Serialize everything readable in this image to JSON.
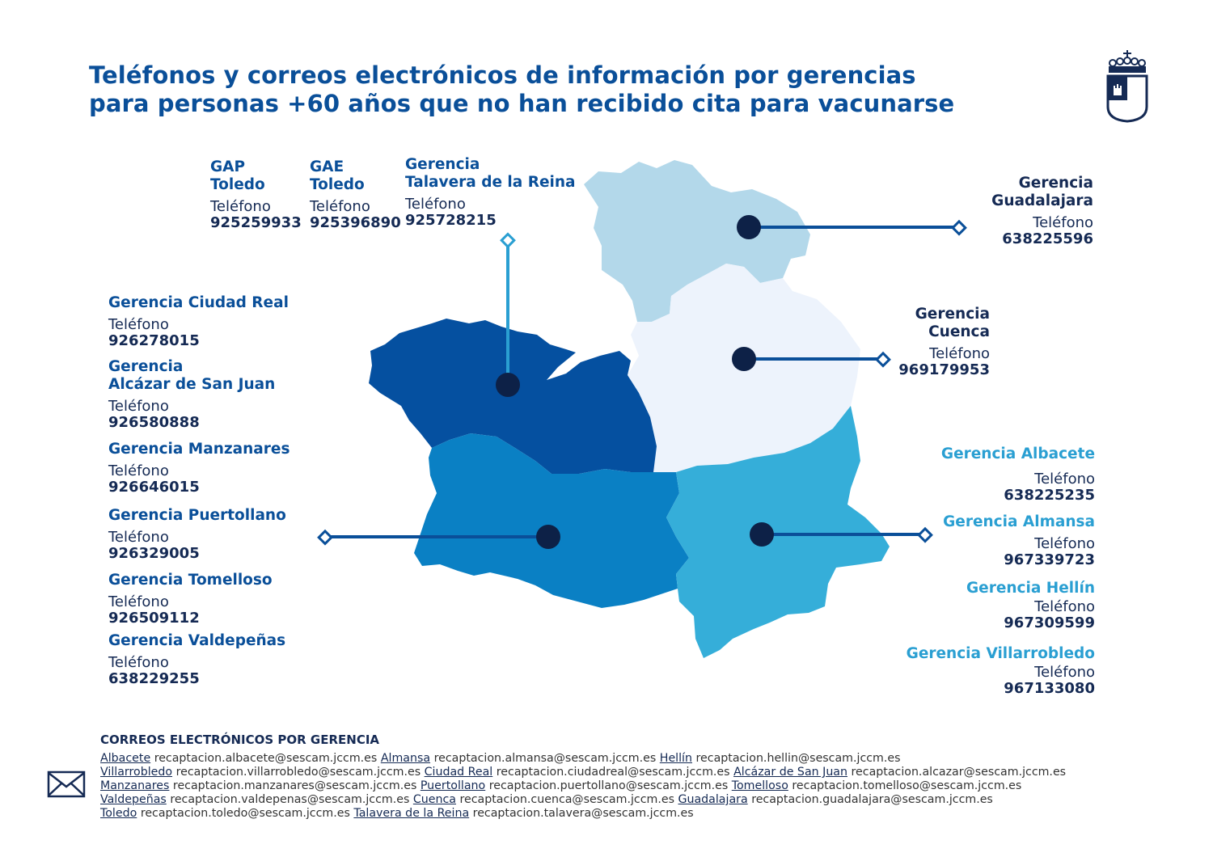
{
  "title": {
    "line1": "Teléfonos y correos electrónicos de información por gerencias",
    "line2": "para personas +60 años que no han recibido cita para vacunarse"
  },
  "phone_label": "Teléfono",
  "top_entries": [
    {
      "name1": "GAP",
      "name2": "Toledo",
      "phone": "925259933"
    },
    {
      "name1": "GAE",
      "name2": "Toledo",
      "phone": "925396890"
    },
    {
      "name1": "Gerencia",
      "name2": "Talavera de la Reina",
      "phone": "925728215"
    }
  ],
  "left_entries": [
    {
      "name1": "Gerencia Ciudad Real",
      "phone": "926278015"
    },
    {
      "name1": "Gerencia",
      "name2": "Alcázar de San Juan",
      "phone": "926580888"
    },
    {
      "name1": "Gerencia Manzanares",
      "phone": "926646015"
    },
    {
      "name1": "Gerencia Puertollano",
      "phone": "926329005"
    },
    {
      "name1": "Gerencia Tomelloso",
      "phone": "926509112"
    },
    {
      "name1": "Gerencia Valdepeñas",
      "phone": "638229255"
    }
  ],
  "guadalajara": {
    "name1": "Gerencia",
    "name2": "Guadalajara",
    "phone": "638225596"
  },
  "cuenca": {
    "name1": "Gerencia",
    "name2": "Cuenca",
    "phone": "969179953"
  },
  "right_entries": [
    {
      "name1": "Gerencia Albacete",
      "phone": "638225235"
    },
    {
      "name1": "Gerencia Almansa",
      "phone": "967339723"
    },
    {
      "name1": "Gerencia Hellín",
      "phone": "967309599"
    },
    {
      "name1": "Gerencia Villarrobledo",
      "phone": "967133080"
    }
  ],
  "emails": {
    "title": "CORREOS ELECTRÓNICOS POR GERENCIA",
    "lines": [
      [
        {
          "name": "Albacete",
          "email": "recaptacion.albacete@sescam.jccm.es"
        },
        {
          "name": "Almansa",
          "email": "recaptacion.almansa@sescam.jccm.es"
        },
        {
          "name": "Hellín",
          "email": "recaptacion.hellin@sescam.jccm.es"
        }
      ],
      [
        {
          "name": "Villarrobledo",
          "email": "recaptacion.villarrobledo@sescam.jccm.es"
        },
        {
          "name": "Ciudad Real",
          "email": "recaptacion.ciudadreal@sescam.jccm.es"
        },
        {
          "name": "Alcázar de San Juan",
          "email": "recaptacion.alcazar@sescam.jccm.es"
        }
      ],
      [
        {
          "name": "Manzanares",
          "email": "recaptacion.manzanares@sescam.jccm.es"
        },
        {
          "name": "Puertollano",
          "email": "recaptacion.puertollano@sescam.jccm.es"
        },
        {
          "name": "Tomelloso",
          "email": "recaptacion.tomelloso@sescam.jccm.es"
        }
      ],
      [
        {
          "name": "Valdepeñas",
          "email": "recaptacion.valdepenas@sescam.jccm.es"
        },
        {
          "name": "Cuenca",
          "email": "recaptacion.cuenca@sescam.jccm.es"
        },
        {
          "name": "Guadalajara",
          "email": "recaptacion.guadalajara@sescam.jccm.es"
        }
      ],
      [
        {
          "name": "Toledo",
          "email": "recaptacion.toledo@sescam.jccm.es"
        },
        {
          "name": "Talavera de la Reina",
          "email": "recaptacion.talavera@sescam.jccm.es"
        }
      ]
    ]
  },
  "colors": {
    "title": "#0a4f99",
    "navy": "#152a54",
    "toledo": "#0550a0",
    "ciudad_real": "#0a80c4",
    "albacete": "#35aed9",
    "cuenca": "#edf3fc",
    "guadalajara": "#b3d8ea",
    "line": "#0a4f99",
    "dot": "#0d2147"
  },
  "icons": {
    "mail": "mail-icon",
    "logo": "jccm-crest-logo"
  }
}
